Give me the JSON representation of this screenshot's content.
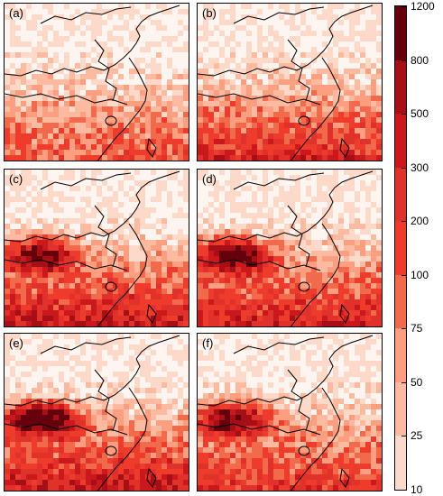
{
  "panels": [
    {
      "id": "a",
      "label": "(a)",
      "intensity": 0.55,
      "tibet": 0.0
    },
    {
      "id": "b",
      "label": "(b)",
      "intensity": 0.75,
      "tibet": 0.0
    },
    {
      "id": "c",
      "label": "(c)",
      "intensity": 0.85,
      "tibet": 0.8
    },
    {
      "id": "d",
      "label": "(d)",
      "intensity": 0.8,
      "tibet": 0.95
    },
    {
      "id": "e",
      "label": "(e)",
      "intensity": 0.85,
      "tibet": 1.0
    },
    {
      "id": "f",
      "label": "(f)",
      "intensity": 0.7,
      "tibet": 0.9
    }
  ],
  "colorbar": {
    "ticks": [
      "1200",
      "800",
      "500",
      "300",
      "200",
      "100",
      "75",
      "50",
      "25",
      "10"
    ],
    "colors": [
      "#67000d",
      "#a50f15",
      "#cb181d",
      "#e0312a",
      "#ef3b2c",
      "#f26a4c",
      "#fb9f80",
      "#fcbba1",
      "#fdd9c9",
      "#fff5f0"
    ]
  }
}
